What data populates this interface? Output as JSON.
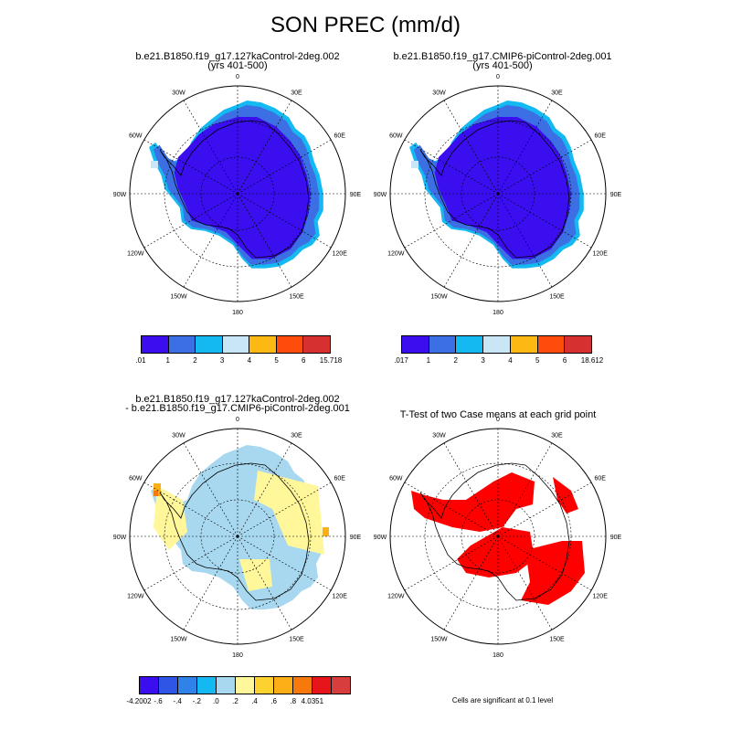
{
  "title": "SON PREC (mm/d)",
  "panels": [
    {
      "id": "case1",
      "title_lines": [
        "b.e21.B1850.f19_g17.127kaControl-2deg.002",
        "(yrs 401-500)"
      ],
      "colorbar": {
        "colors": [
          "#3b0ef0",
          "#3b6fe3",
          "#14b9f2",
          "#c8e6f5",
          "#fdb813",
          "#fe4c0d",
          "#d73030"
        ],
        "labels": [
          ".01",
          "1",
          "2",
          "3",
          "4",
          "5",
          "6",
          "15.718"
        ]
      }
    },
    {
      "id": "case2",
      "title_lines": [
        "b.e21.B1850.f19_g17.CMIP6-piControl-2deg.001",
        "(yrs 401-500)"
      ],
      "colorbar": {
        "colors": [
          "#3b0ef0",
          "#3b6fe3",
          "#14b9f2",
          "#c8e6f5",
          "#fdb813",
          "#fe4c0d",
          "#d73030"
        ],
        "labels": [
          ".017",
          "1",
          "2",
          "3",
          "4",
          "5",
          "6",
          "18.612"
        ]
      }
    },
    {
      "id": "diff",
      "title_lines": [
        "b.e21.B1850.f19_g17.127kaControl-2deg.002",
        "- b.e21.B1850.f19_g17.CMIP6-piControl-2deg.001"
      ],
      "colorbar": {
        "colors": [
          "#3b0ef0",
          "#2f55e6",
          "#2e82e8",
          "#14b9f2",
          "#a8d8ef",
          "#fff79a",
          "#fdd230",
          "#fcaf16",
          "#f7790c",
          "#e8141c",
          "#d83d3d"
        ],
        "labels": [
          "-4.2002",
          "-.6",
          "-.4",
          "-.2",
          ".0",
          ".2",
          ".4",
          ".6",
          ".8",
          "4.0351"
        ]
      }
    },
    {
      "id": "ttest",
      "title_lines": [
        "T-Test of two Case means at each grid point"
      ],
      "footnote": "Cells are significant at 0.1 level"
    }
  ],
  "map": {
    "lon_labels": [
      "0",
      "30E",
      "60E",
      "90E",
      "120E",
      "150E",
      "180",
      "150W",
      "120W",
      "90W",
      "60W",
      "30W"
    ],
    "colors": {
      "precip_main": "#3b0ef0",
      "precip_edge": "#3b6fe3",
      "precip_rim": "#14b9f2",
      "precip_light": "#c8e6f5",
      "diff_neutral_neg": "#a8d8ef",
      "diff_neutral_pos": "#fff79a",
      "diff_pos_mid": "#fdd230",
      "diff_pos_high": "#fcaf16",
      "diff_pos_max": "#f7790c",
      "significant": "#ff0000"
    }
  }
}
